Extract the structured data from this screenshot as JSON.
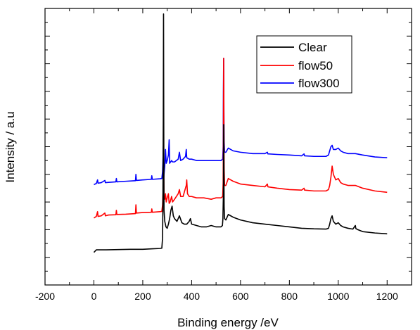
{
  "chart_data": {
    "type": "line",
    "xlabel": "Binding energy /eV",
    "ylabel": "Intensity / a.u",
    "xlim": [
      -200,
      1300
    ],
    "ylim": [
      0,
      100
    ],
    "x_ticks": [
      -200,
      0,
      200,
      400,
      600,
      800,
      1000,
      1200
    ],
    "y_tick_labels_shown": false,
    "grid": false,
    "legend_position": "top-right",
    "series": [
      {
        "name": "Clear",
        "color": "#000000",
        "points": [
          [
            0,
            11.8
          ],
          [
            10,
            12.7
          ],
          [
            50,
            12.7
          ],
          [
            100,
            12.8
          ],
          [
            150,
            12.9
          ],
          [
            200,
            12.9
          ],
          [
            240,
            13.1
          ],
          [
            270,
            13.2
          ],
          [
            278,
            13.3
          ],
          [
            281,
            17
          ],
          [
            282,
            25
          ],
          [
            283,
            40
          ],
          [
            284,
            60
          ],
          [
            285,
            98
          ],
          [
            286,
            55
          ],
          [
            287,
            27
          ],
          [
            290,
            23
          ],
          [
            295,
            21
          ],
          [
            300,
            20.5
          ],
          [
            305,
            22
          ],
          [
            310,
            24
          ],
          [
            315,
            27
          ],
          [
            320,
            28.5
          ],
          [
            325,
            25
          ],
          [
            330,
            24
          ],
          [
            340,
            23
          ],
          [
            350,
            25
          ],
          [
            360,
            22.5
          ],
          [
            370,
            22
          ],
          [
            380,
            22
          ],
          [
            390,
            23
          ],
          [
            395,
            24
          ],
          [
            400,
            22
          ],
          [
            420,
            21.5
          ],
          [
            440,
            21
          ],
          [
            460,
            21
          ],
          [
            480,
            21.5
          ],
          [
            500,
            21
          ],
          [
            510,
            21
          ],
          [
            520,
            21
          ],
          [
            526,
            21.5
          ],
          [
            528,
            24
          ],
          [
            530,
            33
          ],
          [
            531,
            58
          ],
          [
            532,
            45
          ],
          [
            533,
            28
          ],
          [
            535,
            24
          ],
          [
            540,
            23.5
          ],
          [
            550,
            25.5
          ],
          [
            560,
            25
          ],
          [
            570,
            24.5
          ],
          [
            600,
            23.5
          ],
          [
            650,
            22.5
          ],
          [
            700,
            22
          ],
          [
            750,
            21.5
          ],
          [
            800,
            21
          ],
          [
            850,
            20.5
          ],
          [
            900,
            20.3
          ],
          [
            950,
            20.2
          ],
          [
            960,
            20.5
          ],
          [
            965,
            22
          ],
          [
            970,
            24
          ],
          [
            975,
            25
          ],
          [
            980,
            23
          ],
          [
            990,
            22
          ],
          [
            1000,
            22.5
          ],
          [
            1010,
            21.5
          ],
          [
            1020,
            21
          ],
          [
            1040,
            20.5
          ],
          [
            1060,
            20.2
          ],
          [
            1070,
            21.5
          ],
          [
            1072,
            20.4
          ],
          [
            1080,
            20
          ],
          [
            1100,
            19.3
          ],
          [
            1150,
            18.8
          ],
          [
            1200,
            18.5
          ]
        ]
      },
      {
        "name": "flow50",
        "color": "#ff0000",
        "points": [
          [
            0,
            24.2
          ],
          [
            10,
            24.8
          ],
          [
            15,
            26.5
          ],
          [
            17,
            24.8
          ],
          [
            30,
            25
          ],
          [
            45,
            26
          ],
          [
            47,
            25
          ],
          [
            60,
            25.3
          ],
          [
            90,
            25.4
          ],
          [
            92,
            27
          ],
          [
            94,
            25.5
          ],
          [
            130,
            25.6
          ],
          [
            170,
            25.8
          ],
          [
            172,
            29
          ],
          [
            174,
            26
          ],
          [
            200,
            26.2
          ],
          [
            235,
            26.3
          ],
          [
            237,
            27.5
          ],
          [
            239,
            26.3
          ],
          [
            270,
            26.5
          ],
          [
            278,
            26.6
          ],
          [
            281,
            29
          ],
          [
            283,
            33
          ],
          [
            284,
            38
          ],
          [
            285,
            55
          ],
          [
            286,
            40
          ],
          [
            287,
            32
          ],
          [
            290,
            31
          ],
          [
            293,
            33
          ],
          [
            296,
            30
          ],
          [
            300,
            31.5
          ],
          [
            305,
            33
          ],
          [
            308,
            29.5
          ],
          [
            312,
            30
          ],
          [
            318,
            32
          ],
          [
            322,
            30
          ],
          [
            330,
            31
          ],
          [
            345,
            33
          ],
          [
            350,
            34.5
          ],
          [
            355,
            32
          ],
          [
            365,
            32
          ],
          [
            378,
            36
          ],
          [
            380,
            38
          ],
          [
            383,
            33
          ],
          [
            390,
            32
          ],
          [
            400,
            32
          ],
          [
            420,
            31.5
          ],
          [
            450,
            31.5
          ],
          [
            480,
            31
          ],
          [
            500,
            31.5
          ],
          [
            520,
            31.5
          ],
          [
            527,
            32
          ],
          [
            529,
            37
          ],
          [
            530,
            55
          ],
          [
            531,
            82
          ],
          [
            532,
            60
          ],
          [
            533,
            42
          ],
          [
            535,
            36
          ],
          [
            540,
            36
          ],
          [
            550,
            38.5
          ],
          [
            560,
            38
          ],
          [
            570,
            37.5
          ],
          [
            600,
            36.5
          ],
          [
            650,
            36
          ],
          [
            700,
            35.5
          ],
          [
            710,
            36.5
          ],
          [
            712,
            35.5
          ],
          [
            750,
            35
          ],
          [
            800,
            34.5
          ],
          [
            850,
            34.3
          ],
          [
            860,
            35
          ],
          [
            862,
            34.3
          ],
          [
            900,
            34
          ],
          [
            950,
            34
          ],
          [
            960,
            34.5
          ],
          [
            965,
            36
          ],
          [
            970,
            39
          ],
          [
            975,
            43
          ],
          [
            980,
            40
          ],
          [
            990,
            38
          ],
          [
            1000,
            38.5
          ],
          [
            1010,
            37
          ],
          [
            1020,
            36.5
          ],
          [
            1040,
            36
          ],
          [
            1070,
            36
          ],
          [
            1100,
            35
          ],
          [
            1150,
            34
          ],
          [
            1200,
            33.5
          ]
        ]
      },
      {
        "name": "flow300",
        "color": "#0000ff",
        "points": [
          [
            0,
            36.3
          ],
          [
            10,
            36.7
          ],
          [
            15,
            38
          ],
          [
            17,
            36.8
          ],
          [
            30,
            37
          ],
          [
            45,
            37.8
          ],
          [
            47,
            37
          ],
          [
            60,
            37.1
          ],
          [
            90,
            37.3
          ],
          [
            92,
            38.5
          ],
          [
            94,
            37.3
          ],
          [
            130,
            37.5
          ],
          [
            170,
            37.7
          ],
          [
            172,
            40
          ],
          [
            174,
            37.8
          ],
          [
            200,
            38
          ],
          [
            235,
            38.2
          ],
          [
            237,
            39.5
          ],
          [
            239,
            38.2
          ],
          [
            270,
            38.4
          ],
          [
            278,
            38.5
          ],
          [
            281,
            41
          ],
          [
            283,
            46
          ],
          [
            284,
            50
          ],
          [
            285,
            42
          ],
          [
            286,
            39
          ],
          [
            290,
            43
          ],
          [
            293,
            49
          ],
          [
            296,
            44
          ],
          [
            300,
            45
          ],
          [
            305,
            47
          ],
          [
            308,
            52.5
          ],
          [
            310,
            44
          ],
          [
            318,
            45
          ],
          [
            322,
            44.5
          ],
          [
            330,
            44.5
          ],
          [
            345,
            45.5
          ],
          [
            350,
            48
          ],
          [
            355,
            45
          ],
          [
            365,
            45.5
          ],
          [
            375,
            46.5
          ],
          [
            378,
            49
          ],
          [
            380,
            46
          ],
          [
            390,
            45.5
          ],
          [
            400,
            45.5
          ],
          [
            420,
            45
          ],
          [
            450,
            45
          ],
          [
            480,
            45
          ],
          [
            500,
            45
          ],
          [
            520,
            45
          ],
          [
            527,
            45.5
          ],
          [
            529,
            50
          ],
          [
            530,
            70
          ],
          [
            531,
            82
          ],
          [
            532,
            65
          ],
          [
            533,
            52
          ],
          [
            535,
            48
          ],
          [
            540,
            48
          ],
          [
            550,
            49.5
          ],
          [
            560,
            49
          ],
          [
            570,
            48.5
          ],
          [
            600,
            48
          ],
          [
            650,
            47.5
          ],
          [
            700,
            47.5
          ],
          [
            710,
            48
          ],
          [
            712,
            47.4
          ],
          [
            750,
            47.2
          ],
          [
            800,
            47
          ],
          [
            850,
            46.7
          ],
          [
            860,
            47.4
          ],
          [
            862,
            46.7
          ],
          [
            900,
            46.5
          ],
          [
            950,
            46.5
          ],
          [
            960,
            47
          ],
          [
            965,
            48.5
          ],
          [
            970,
            50
          ],
          [
            975,
            50.5
          ],
          [
            980,
            49
          ],
          [
            990,
            49
          ],
          [
            1000,
            49.5
          ],
          [
            1010,
            48.5
          ],
          [
            1020,
            48
          ],
          [
            1040,
            47.5
          ],
          [
            1070,
            47.5
          ],
          [
            1100,
            47
          ],
          [
            1150,
            46.3
          ],
          [
            1200,
            46
          ]
        ]
      }
    ]
  }
}
